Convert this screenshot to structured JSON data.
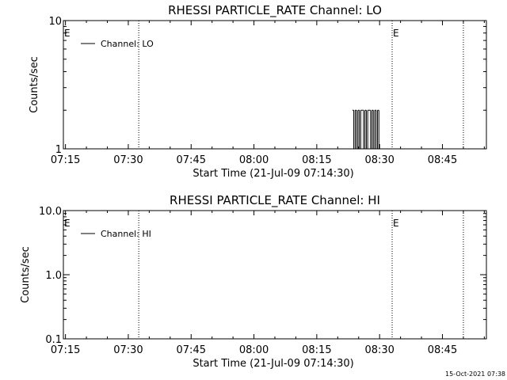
{
  "chart_data": [
    {
      "type": "line",
      "title": "RHESSI PARTICLE_RATE Channel: LO",
      "xlabel": "Start Time (21-Jul-09 07:14:30)",
      "ylabel": "Counts/sec",
      "y_scale": "log",
      "ylim": [
        1,
        10
      ],
      "y_ticks": [
        "1",
        "10"
      ],
      "x_range": [
        "07:14:30",
        "08:55:30"
      ],
      "x_ticks": [
        "07:15",
        "07:30",
        "07:45",
        "08:00",
        "08:15",
        "08:30",
        "08:45"
      ],
      "legend": {
        "label": "Channel: LO",
        "placement": "top-left"
      },
      "vlines": [
        {
          "time": "07:32:30",
          "marker": ""
        },
        {
          "time": "08:33:00",
          "marker": "E"
        },
        {
          "time": "08:50:00",
          "marker": ""
        }
      ],
      "left_marker": "E",
      "series": [
        {
          "name": "Channel: LO",
          "x": [
            "08:23:30",
            "08:23:50",
            "08:24:10",
            "08:24:30",
            "08:24:50",
            "08:25:10",
            "08:25:30",
            "08:25:50",
            "08:26:10",
            "08:26:30",
            "08:26:50",
            "08:27:10",
            "08:27:30",
            "08:27:50",
            "08:28:10",
            "08:28:30",
            "08:28:50",
            "08:29:10",
            "08:29:30",
            "08:29:50"
          ],
          "values": [
            2,
            1,
            2,
            1,
            2,
            1,
            2,
            2,
            1,
            2,
            1,
            2,
            2,
            1,
            2,
            1,
            2,
            1,
            2,
            1
          ]
        }
      ]
    },
    {
      "type": "line",
      "title": "RHESSI PARTICLE_RATE Channel: HI",
      "xlabel": "Start Time (21-Jul-09 07:14:30)",
      "ylabel": "Counts/sec",
      "y_scale": "log",
      "ylim": [
        0.1,
        10
      ],
      "y_ticks": [
        "0.1",
        "1.0",
        "10.0"
      ],
      "x_range": [
        "07:14:30",
        "08:55:30"
      ],
      "x_ticks": [
        "07:15",
        "07:30",
        "07:45",
        "08:00",
        "08:15",
        "08:30",
        "08:45"
      ],
      "legend": {
        "label": "Channel: HI",
        "placement": "top-left"
      },
      "vlines": [
        {
          "time": "07:32:30",
          "marker": ""
        },
        {
          "time": "08:33:00",
          "marker": "E"
        },
        {
          "time": "08:50:00",
          "marker": ""
        }
      ],
      "left_marker": "E",
      "series": [
        {
          "name": "Channel: HI",
          "x": [],
          "values": []
        }
      ]
    }
  ],
  "footer": {
    "timestamp": "15-Oct-2021 07:38"
  }
}
